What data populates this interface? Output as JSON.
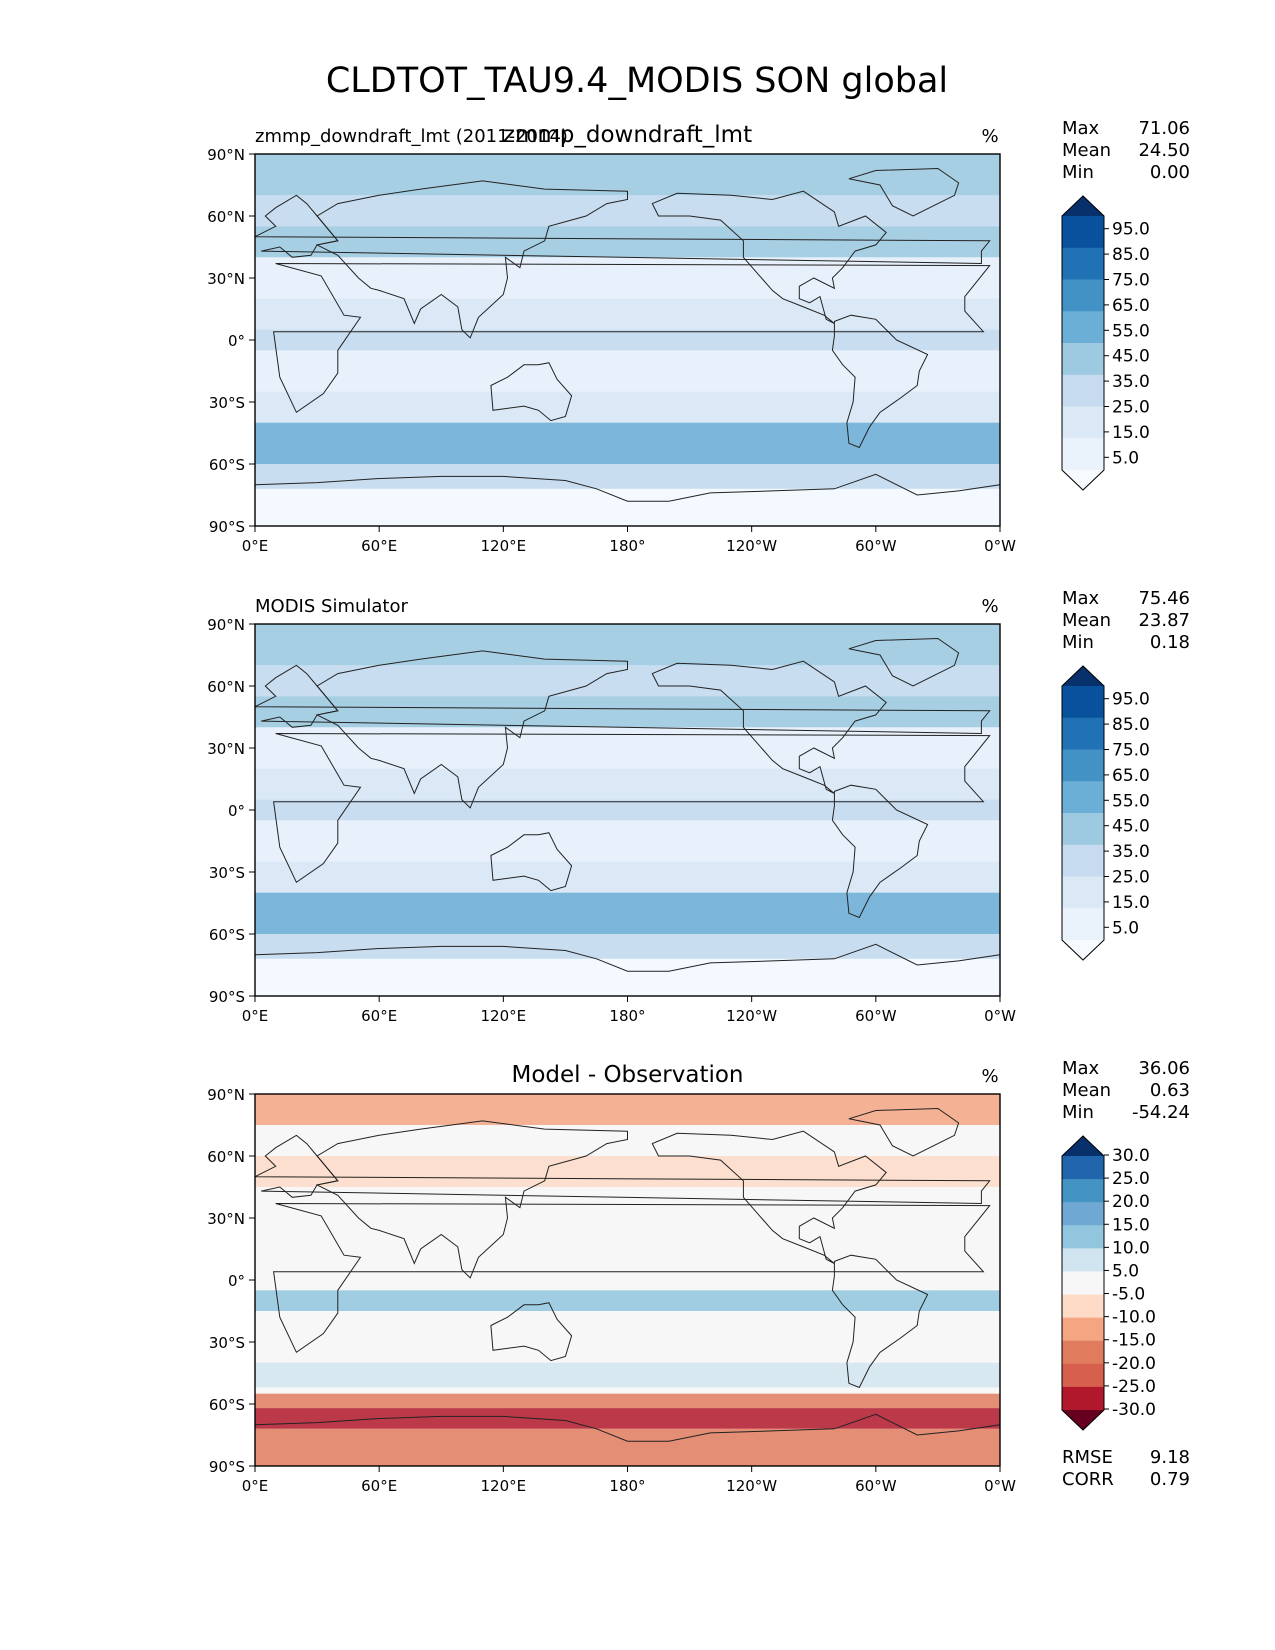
{
  "chart_data": {
    "title": "CLDTOT_TAU9.4_MODIS SON global",
    "type": "map",
    "lat_ticks": [
      "90°N",
      "60°N",
      "30°N",
      "0°",
      "30°S",
      "60°S",
      "90°S"
    ],
    "lon_ticks": [
      "0°E",
      "60°E",
      "120°E",
      "180°",
      "120°W",
      "60°W",
      "0°W"
    ],
    "panels": [
      {
        "left_title": "zmmp_downdraft_lmt (2011-2014)",
        "center_title": "zmmp_downdraft_lmt",
        "units": "%",
        "stats": [
          {
            "label": "Max",
            "value": "71.06"
          },
          {
            "label": "Mean",
            "value": "24.50"
          },
          {
            "label": "Min",
            "value": "0.00"
          }
        ],
        "colorbar": {
          "labels": [
            "95.0",
            "85.0",
            "75.0",
            "65.0",
            "55.0",
            "45.0",
            "35.0",
            "25.0",
            "15.0",
            "5.0"
          ],
          "colors": [
            "#08306b",
            "#08519c",
            "#2171b5",
            "#4292c6",
            "#6baed6",
            "#9ecae1",
            "#c6dbef",
            "#dbe9f6",
            "#eaf2fb",
            "#f7fbff"
          ]
        }
      },
      {
        "left_title": "MODIS Simulator",
        "center_title": "",
        "units": "%",
        "stats": [
          {
            "label": "Max",
            "value": "75.46"
          },
          {
            "label": "Mean",
            "value": "23.87"
          },
          {
            "label": "Min",
            "value": "0.18"
          }
        ],
        "colorbar": {
          "labels": [
            "95.0",
            "85.0",
            "75.0",
            "65.0",
            "55.0",
            "45.0",
            "35.0",
            "25.0",
            "15.0",
            "5.0"
          ],
          "colors": [
            "#08306b",
            "#08519c",
            "#2171b5",
            "#4292c6",
            "#6baed6",
            "#9ecae1",
            "#c6dbef",
            "#dbe9f6",
            "#eaf2fb",
            "#f7fbff"
          ]
        }
      },
      {
        "left_title": "",
        "center_title": "Model - Observation",
        "units": "%",
        "stats": [
          {
            "label": "Max",
            "value": "36.06"
          },
          {
            "label": "Mean",
            "value": "0.63"
          },
          {
            "label": "Min",
            "value": "-54.24"
          }
        ],
        "bottom_stats": [
          {
            "label": "RMSE",
            "value": "9.18"
          },
          {
            "label": "CORR",
            "value": "0.79"
          }
        ],
        "colorbar": {
          "labels": [
            "30.0",
            "25.0",
            "20.0",
            "15.0",
            "10.0",
            "5.0",
            "-5.0",
            "-10.0",
            "-15.0",
            "-20.0",
            "-25.0",
            "-30.0"
          ],
          "colors": [
            "#08306b",
            "#2166ac",
            "#4393c3",
            "#6fa8d2",
            "#92c5de",
            "#d1e5f0",
            "#f7f7f7",
            "#fddbc7",
            "#f4a582",
            "#e07b5e",
            "#d6604d",
            "#b2182b",
            "#67001f"
          ]
        }
      }
    ]
  }
}
